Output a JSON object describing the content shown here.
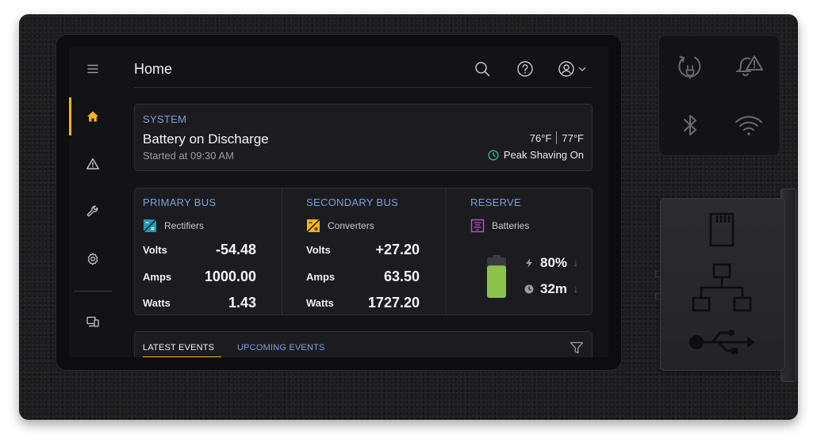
{
  "header": {
    "title": "Home",
    "icons": [
      "search-icon",
      "help-icon",
      "account-icon",
      "chevron-down-icon"
    ]
  },
  "sidebar": {
    "items": [
      {
        "name": "menu",
        "icon": "hamburger-icon"
      },
      {
        "name": "home",
        "icon": "home-icon",
        "active": true
      },
      {
        "name": "alarms",
        "icon": "warning-icon"
      },
      {
        "name": "maintenance",
        "icon": "wrench-icon"
      },
      {
        "name": "settings",
        "icon": "gear-icon"
      },
      {
        "name": "devices",
        "icon": "devices-icon"
      }
    ]
  },
  "system": {
    "label": "SYSTEM",
    "status": "Battery on Discharge",
    "started": "Started at 09:30 AM",
    "temp_1": "76°F",
    "temp_2": "77°F",
    "mode": "Peak Shaving On"
  },
  "primary_bus": {
    "title": "PRIMARY BUS",
    "source": "Rectifiers",
    "rows": [
      {
        "label": "Volts",
        "value": "-54.48"
      },
      {
        "label": "Amps",
        "value": "1000.00"
      },
      {
        "label": "Watts",
        "value": "1.43"
      }
    ]
  },
  "secondary_bus": {
    "title": "SECONDARY BUS",
    "source": "Converters",
    "rows": [
      {
        "label": "Volts",
        "value": "+27.20"
      },
      {
        "label": "Amps",
        "value": "63.50"
      },
      {
        "label": "Watts",
        "value": "1727.20"
      }
    ]
  },
  "reserve": {
    "title": "RESERVE",
    "source": "Batteries",
    "charge": "80%",
    "charge_fraction": 0.8,
    "runtime": "32m",
    "trend_arrow": "↓"
  },
  "events": {
    "tab_latest": "LATEST EVENTS",
    "tab_upcoming": "UPCOMING EVENTS"
  },
  "colors": {
    "accent": "#f5b323",
    "label_blue": "#7c9fd8",
    "battery_green": "#8bc34a",
    "alert_red": "#e2443c",
    "mode_green": "#2fb67c"
  },
  "hardware": {
    "status_icons": [
      "power-cycle-icon",
      "alarm-bell-icon",
      "bluetooth-icon",
      "wifi-icon"
    ],
    "port_icons": [
      "sd-card-icon",
      "ethernet-icon",
      "usb-icon"
    ]
  }
}
